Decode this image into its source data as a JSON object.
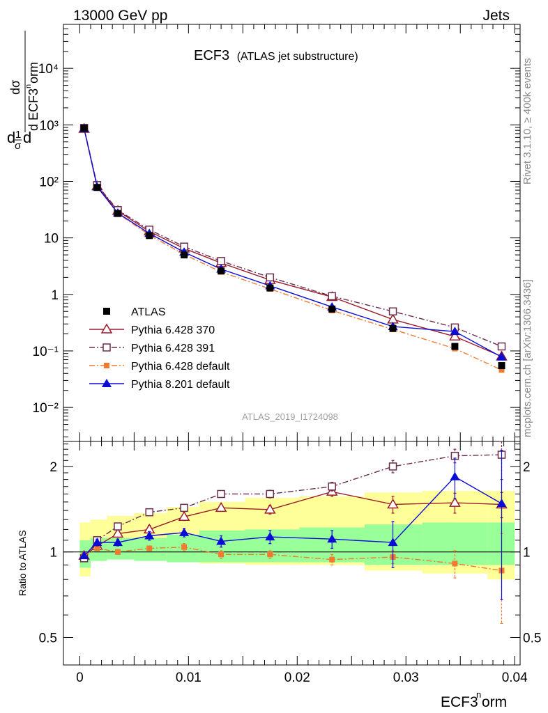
{
  "header": {
    "left_label": "13000 GeV pp",
    "right_label": "Jets"
  },
  "side_labels": {
    "rivet": "Rivet 3.1.10, ≥ 400k events",
    "mcplots": "mcplots.cern.ch [arXiv:1306.3436]"
  },
  "analysis_id": "ATLAS_2019_I1724098",
  "chart_data": [
    {
      "type": "line",
      "panel": "main",
      "title": "ECF3",
      "subtitle": "(ATLAS jet substructure)",
      "ylabel": "1/σ dσ/d ECF3norm",
      "xlabel": "",
      "yscale": "log",
      "xlim": [
        -0.0015,
        0.0405
      ],
      "ylim": [
        0.0025,
        60000
      ],
      "y_ticks": [
        {
          "value": 0.01,
          "label": "10⁻²"
        },
        {
          "value": 0.1,
          "label": "10⁻¹"
        },
        {
          "value": 1,
          "label": "1"
        },
        {
          "value": 10,
          "label": "10"
        },
        {
          "value": 100,
          "label": "10²"
        },
        {
          "value": 1000,
          "label": "10³"
        },
        {
          "value": 10000,
          "label": "10⁴"
        }
      ],
      "x": [
        0.0004,
        0.0016,
        0.0035,
        0.0064,
        0.0096,
        0.013,
        0.0175,
        0.0232,
        0.0288,
        0.0345,
        0.0388
      ],
      "series": [
        {
          "name": "ATLAS",
          "color": "#000000",
          "marker": "filled-square",
          "line": "none",
          "values": [
            870,
            78,
            27,
            11,
            5.0,
            2.6,
            1.3,
            0.55,
            0.25,
            0.12,
            0.055
          ]
        },
        {
          "name": "Pythia 6.428 370",
          "color": "#9a1c2a",
          "marker": "open-triangle",
          "line": "solid",
          "values": [
            850,
            82,
            30,
            13,
            6.5,
            3.6,
            1.8,
            0.9,
            0.36,
            0.18,
            0.08
          ]
        },
        {
          "name": "Pythia 6.428 391",
          "color": "#6b2c4e",
          "marker": "open-square",
          "line": "dashdot",
          "values": [
            880,
            86,
            31,
            14,
            7.0,
            3.9,
            2.0,
            0.93,
            0.5,
            0.26,
            0.12
          ]
        },
        {
          "name": "Pythia 6.428 default",
          "color": "#f07a30",
          "marker": "filled-small-square",
          "line": "dashdot",
          "values": [
            880,
            80,
            27,
            11.2,
            5.1,
            2.5,
            1.25,
            0.52,
            0.24,
            0.11,
            0.046
          ]
        },
        {
          "name": "Pythia 8.201 default",
          "color": "#0b0bd6",
          "marker": "filled-triangle",
          "line": "solid",
          "values": [
            860,
            80,
            27.5,
            12,
            5.6,
            2.8,
            1.42,
            0.6,
            0.27,
            0.22,
            0.078
          ]
        }
      ],
      "legend_position": "bottom-left"
    },
    {
      "type": "line",
      "panel": "ratio",
      "ylabel": "Ratio to ATLAS",
      "xlabel": "ECF3norm",
      "yscale": "log",
      "xlim": [
        -0.0015,
        0.0405
      ],
      "ylim": [
        0.4,
        2.45
      ],
      "x_ticks": [
        {
          "value": 0,
          "label": "0"
        },
        {
          "value": 0.01,
          "label": "0.01"
        },
        {
          "value": 0.02,
          "label": "0.02"
        },
        {
          "value": 0.03,
          "label": "0.03"
        },
        {
          "value": 0.04,
          "label": "0.04"
        }
      ],
      "y_ticks": [
        {
          "value": 0.5,
          "label": "0.5"
        },
        {
          "value": 1,
          "label": "1"
        },
        {
          "value": 2,
          "label": "2"
        }
      ],
      "bin_edges": [
        0.0,
        0.001,
        0.0025,
        0.005,
        0.008,
        0.011,
        0.0152,
        0.0202,
        0.0262,
        0.0315,
        0.0375,
        0.04
      ],
      "band_stat": {
        "color": "#99ff99",
        "low": [
          0.88,
          0.93,
          0.94,
          0.93,
          0.92,
          0.92,
          0.92,
          0.92,
          0.9,
          0.9,
          0.9
        ],
        "high": [
          1.1,
          1.12,
          1.12,
          1.12,
          1.15,
          1.19,
          1.2,
          1.22,
          1.25,
          1.27,
          1.27
        ]
      },
      "band_total": {
        "color": "#ffff99",
        "low": [
          0.82,
          0.95,
          0.95,
          0.94,
          0.92,
          0.91,
          0.9,
          0.9,
          0.86,
          0.84,
          0.8
        ],
        "high": [
          1.27,
          1.3,
          1.34,
          1.37,
          1.44,
          1.5,
          1.55,
          1.57,
          1.62,
          1.64,
          1.64
        ]
      },
      "x": [
        0.0004,
        0.0016,
        0.0035,
        0.0064,
        0.0096,
        0.013,
        0.0175,
        0.0232,
        0.0288,
        0.0345,
        0.0388
      ],
      "series": [
        {
          "name": "Pythia 6.428 370",
          "color": "#9a1c2a",
          "marker": "open-triangle",
          "line": "solid",
          "values": [
            0.97,
            1.05,
            1.16,
            1.2,
            1.33,
            1.43,
            1.41,
            1.63,
            1.47,
            1.49,
            1.47
          ],
          "err": [
            0.02,
            0.03,
            0.03,
            0.04,
            0.04,
            0.04,
            0.05,
            0.06,
            0.1,
            0.12,
            0.15
          ]
        },
        {
          "name": "Pythia 6.428 391",
          "color": "#6b2c4e",
          "marker": "open-square",
          "line": "dashdot",
          "values": [
            0.95,
            1.1,
            1.23,
            1.38,
            1.43,
            1.6,
            1.6,
            1.7,
            2.0,
            2.18,
            2.2
          ],
          "err": [
            0.02,
            0.03,
            0.03,
            0.04,
            0.04,
            0.04,
            0.05,
            0.06,
            0.1,
            0.12,
            0.4
          ]
        },
        {
          "name": "Pythia 6.428 default",
          "color": "#f07a30",
          "marker": "filled-small-square",
          "line": "dashdot",
          "values": [
            0.97,
            1.03,
            1.0,
            1.03,
            1.04,
            0.98,
            0.98,
            0.94,
            0.96,
            0.91,
            0.86
          ],
          "err": [
            0.02,
            0.02,
            0.02,
            0.02,
            0.03,
            0.03,
            0.03,
            0.04,
            0.05,
            0.1,
            0.3
          ]
        },
        {
          "name": "Pythia 8.201 default",
          "color": "#0b0bd6",
          "marker": "filled-triangle",
          "line": "solid",
          "values": [
            0.97,
            1.08,
            1.08,
            1.14,
            1.17,
            1.09,
            1.13,
            1.11,
            1.08,
            1.84,
            1.48
          ],
          "err": [
            0.02,
            0.03,
            0.03,
            0.04,
            0.04,
            0.05,
            0.06,
            0.08,
            0.2,
            0.3,
            0.8
          ]
        }
      ],
      "reference_line": 1
    }
  ]
}
